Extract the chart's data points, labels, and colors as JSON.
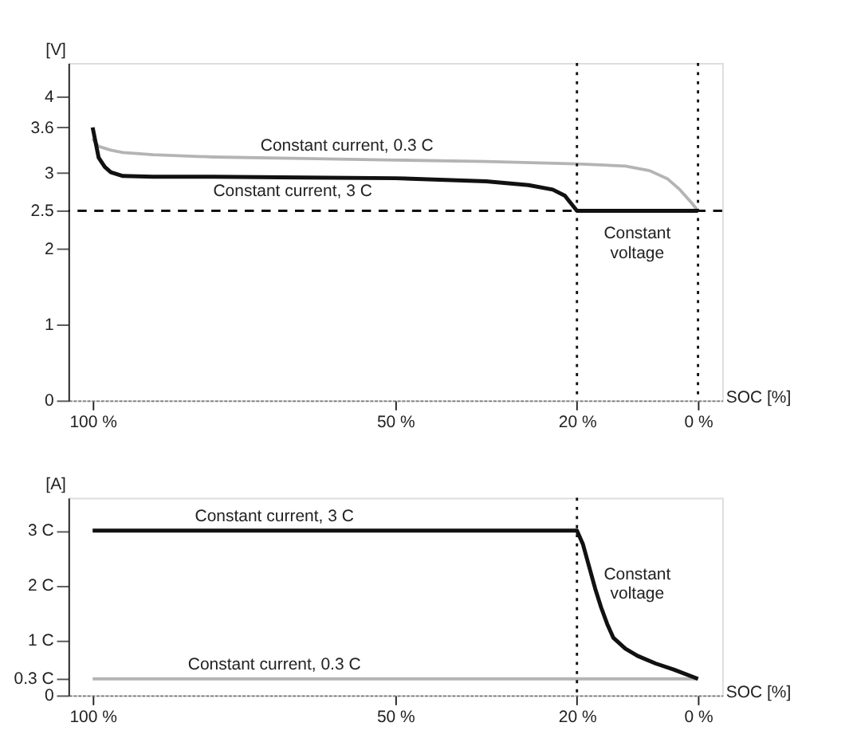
{
  "chart_data": [
    {
      "type": "line",
      "xlabel": "SOC [%]",
      "ylabel": "[V]",
      "xlim": [
        104,
        -4
      ],
      "xticks": [
        {
          "value": 100,
          "label": "100 %"
        },
        {
          "value": 50,
          "label": "50 %"
        },
        {
          "value": 20,
          "label": "20 %"
        },
        {
          "value": 0,
          "label": "0 %"
        }
      ],
      "ylim": [
        0,
        4.45
      ],
      "yticks": [
        0,
        1,
        2,
        2.5,
        3,
        3.6,
        4
      ],
      "grid": false,
      "marker": "none",
      "line_style": "solid",
      "series": [
        {
          "color": "#b4b4b4",
          "x": [
            100,
            99,
            97,
            95,
            90,
            80,
            65,
            50,
            35,
            20,
            12,
            8,
            5,
            3,
            1,
            0
          ],
          "values": [
            3.45,
            3.35,
            3.3,
            3.27,
            3.24,
            3.21,
            3.19,
            3.17,
            3.15,
            3.12,
            3.09,
            3.03,
            2.92,
            2.78,
            2.6,
            2.5
          ]
        },
        {
          "color": "#111111",
          "x": [
            100,
            99.5,
            99,
            98,
            97,
            95,
            90,
            80,
            65,
            50,
            35,
            28,
            24,
            22,
            21,
            20,
            15,
            10,
            5,
            0
          ],
          "values": [
            3.6,
            3.4,
            3.2,
            3.08,
            3.01,
            2.96,
            2.95,
            2.95,
            2.94,
            2.93,
            2.89,
            2.84,
            2.78,
            2.7,
            2.6,
            2.5,
            2.5,
            2.5,
            2.5,
            2.5
          ]
        }
      ],
      "ref_lines": [
        {
          "axis": "y",
          "value": 2.5,
          "color": "#111111",
          "line_style": "dashed"
        },
        {
          "axis": "x",
          "value": 20,
          "color": "#111111",
          "line_style": "dotted"
        },
        {
          "axis": "x",
          "value": 0,
          "color": "#111111",
          "line_style": "dotted"
        }
      ],
      "annotations": [
        "Constant current, 0.3 C",
        "Constant current, 3 C",
        "Constant\nvoltage"
      ]
    },
    {
      "type": "line",
      "xlabel": "SOC [%]",
      "ylabel": "[A]",
      "xlim": [
        104,
        -4
      ],
      "xticks": [
        {
          "value": 100,
          "label": "100 %"
        },
        {
          "value": 50,
          "label": "50 %"
        },
        {
          "value": 20,
          "label": "20 %"
        },
        {
          "value": 0,
          "label": "0 %"
        }
      ],
      "ylim": [
        0,
        3.6
      ],
      "yticks": [
        0,
        {
          "value": 0.3,
          "label": "0.3 C"
        },
        {
          "value": 1,
          "label": "1 C"
        },
        {
          "value": 2,
          "label": "2 C"
        },
        {
          "value": 3,
          "label": "3 C"
        }
      ],
      "grid": false,
      "marker": "none",
      "line_style": "solid",
      "series": [
        {
          "color": "#b4b4b4",
          "x": [
            100,
            0
          ],
          "values": [
            0.3,
            0.3
          ]
        },
        {
          "color": "#111111",
          "x": [
            100,
            50,
            20,
            19,
            18,
            17,
            16,
            15,
            14,
            12,
            10,
            7,
            4,
            0
          ],
          "values": [
            3,
            3,
            3,
            2.75,
            2.35,
            1.95,
            1.6,
            1.3,
            1.05,
            0.85,
            0.72,
            0.58,
            0.47,
            0.3
          ]
        }
      ],
      "ref_lines": [
        {
          "axis": "x",
          "value": 20,
          "color": "#111111",
          "line_style": "dotted"
        }
      ],
      "annotations": [
        "Constant current, 3 C",
        "Constant\nvoltage",
        "Constant current, 0.3 C"
      ]
    }
  ]
}
